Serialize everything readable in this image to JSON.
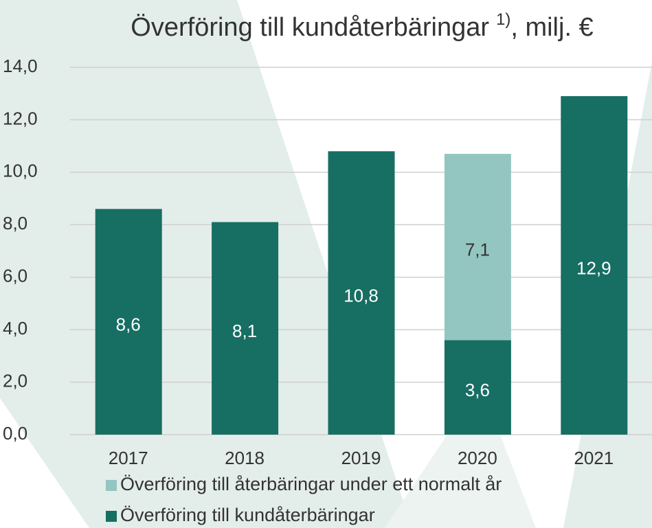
{
  "chart_data": {
    "type": "stacked_bar",
    "title": "Överföring till kundåterbäringar",
    "title_note": "1)",
    "title_suffix": ", milj. €",
    "categories": [
      "2017",
      "2018",
      "2019",
      "2020",
      "2021"
    ],
    "series": [
      {
        "name": "Överföring till kundåterbäringar",
        "color": "#176e63",
        "values": [
          8.6,
          8.1,
          10.8,
          3.6,
          12.9
        ],
        "value_labels": [
          "8,6",
          "8,1",
          "10,8",
          "3,6",
          "12,9"
        ]
      },
      {
        "name": "Överföring till återbäringar under ett normalt år",
        "color": "#93c6c0",
        "values": [
          null,
          null,
          null,
          7.1,
          null
        ],
        "value_labels": [
          null,
          null,
          null,
          "7,1",
          null
        ]
      }
    ],
    "ylim": [
      0,
      14
    ],
    "yticks": [
      {
        "value": 0,
        "label": "0,0"
      },
      {
        "value": 2,
        "label": "2,0"
      },
      {
        "value": 4,
        "label": "4,0"
      },
      {
        "value": 6,
        "label": "6,0"
      },
      {
        "value": 8,
        "label": "8,0"
      },
      {
        "value": 10,
        "label": "10,0"
      },
      {
        "value": 12,
        "label": "12,0"
      },
      {
        "value": 14,
        "label": "14,0"
      }
    ],
    "grid": true
  }
}
